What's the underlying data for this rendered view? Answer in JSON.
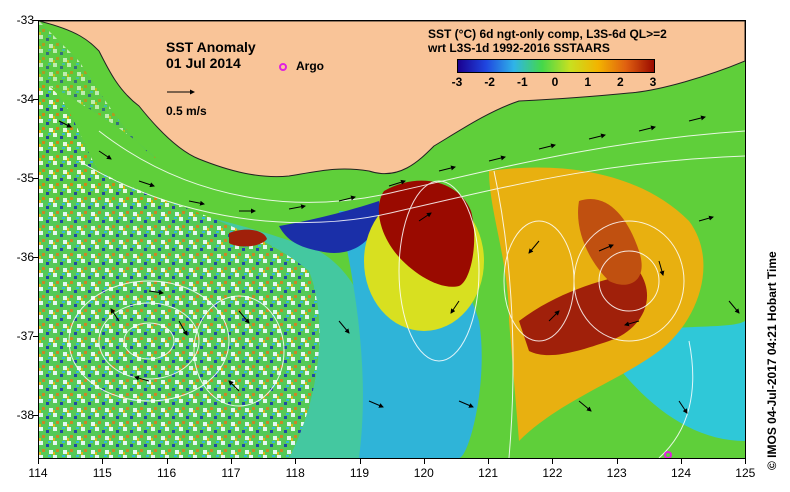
{
  "map": {
    "title": "SST Anomaly",
    "date": "01 Jul 2014",
    "argo_label": "Argo",
    "velocity_scale_label": "0.5 m/s",
    "product_line1": "SST (°C) 6d ngt-only comp, L3S-6d QL>=2",
    "product_line2": "wrt L3S-1d 1992-2016 SSTAARS",
    "credit": "© IMOS 04-Jul-2017 04:21 Hobart Time",
    "colorbar_ticks": [
      "-3",
      "-2",
      "-1",
      "0",
      "1",
      "2",
      "3"
    ],
    "lat_ticks": [
      "-33",
      "-34",
      "-35",
      "-36",
      "-37",
      "-38"
    ],
    "lon_ticks": [
      "114",
      "115",
      "116",
      "117",
      "118",
      "119",
      "120",
      "121",
      "122",
      "123",
      "124",
      "125"
    ],
    "colors": {
      "land": "#f9c498",
      "warm_anomaly": "#9a0a00",
      "cold_anomaly": "#1a2fa8",
      "neutral": "#5fcf3a",
      "argo_marker": "#e020e0"
    },
    "colorbar_colors": [
      "#1a0090",
      "#1f46e0",
      "#2fb4e8",
      "#44d84a",
      "#c8e020",
      "#f3b400",
      "#e06010",
      "#9a0a00"
    ]
  }
}
